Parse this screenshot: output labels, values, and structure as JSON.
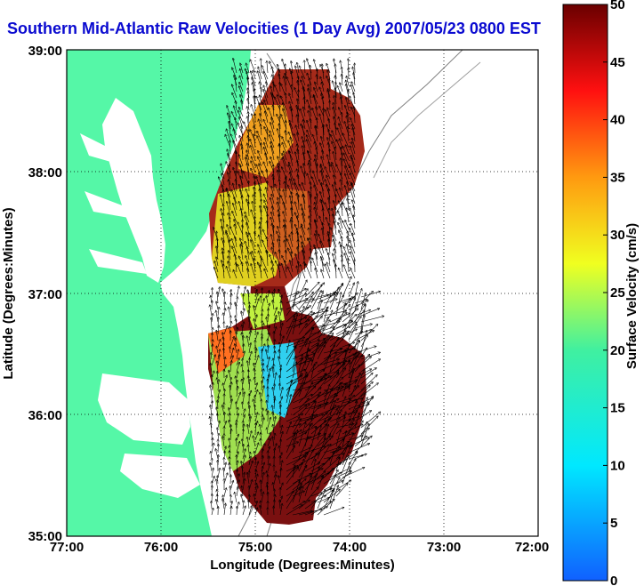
{
  "title": "Southern Mid-Atlantic Raw Velocities (1 Day Avg) 2007/05/23 0800 EST",
  "x_axis": {
    "label": "Longitude (Degrees:Minutes)",
    "ticks": [
      "77:00",
      "76:00",
      "75:00",
      "74:00",
      "73:00",
      "72:00"
    ]
  },
  "y_axis": {
    "label": "Latitude (Degrees:Minutes)",
    "ticks": [
      "39:00",
      "38:00",
      "37:00",
      "36:00",
      "35:00"
    ]
  },
  "colorbar": {
    "label": "Surface Velocity (cm/s)",
    "ticks": [
      "0",
      "5",
      "10",
      "15",
      "20",
      "25",
      "30",
      "35",
      "40",
      "45",
      "50"
    ],
    "range": [
      0,
      50
    ]
  },
  "colors": {
    "land": "#55f7a7",
    "water": "#ffffff",
    "title": "#0a0ad0"
  }
}
